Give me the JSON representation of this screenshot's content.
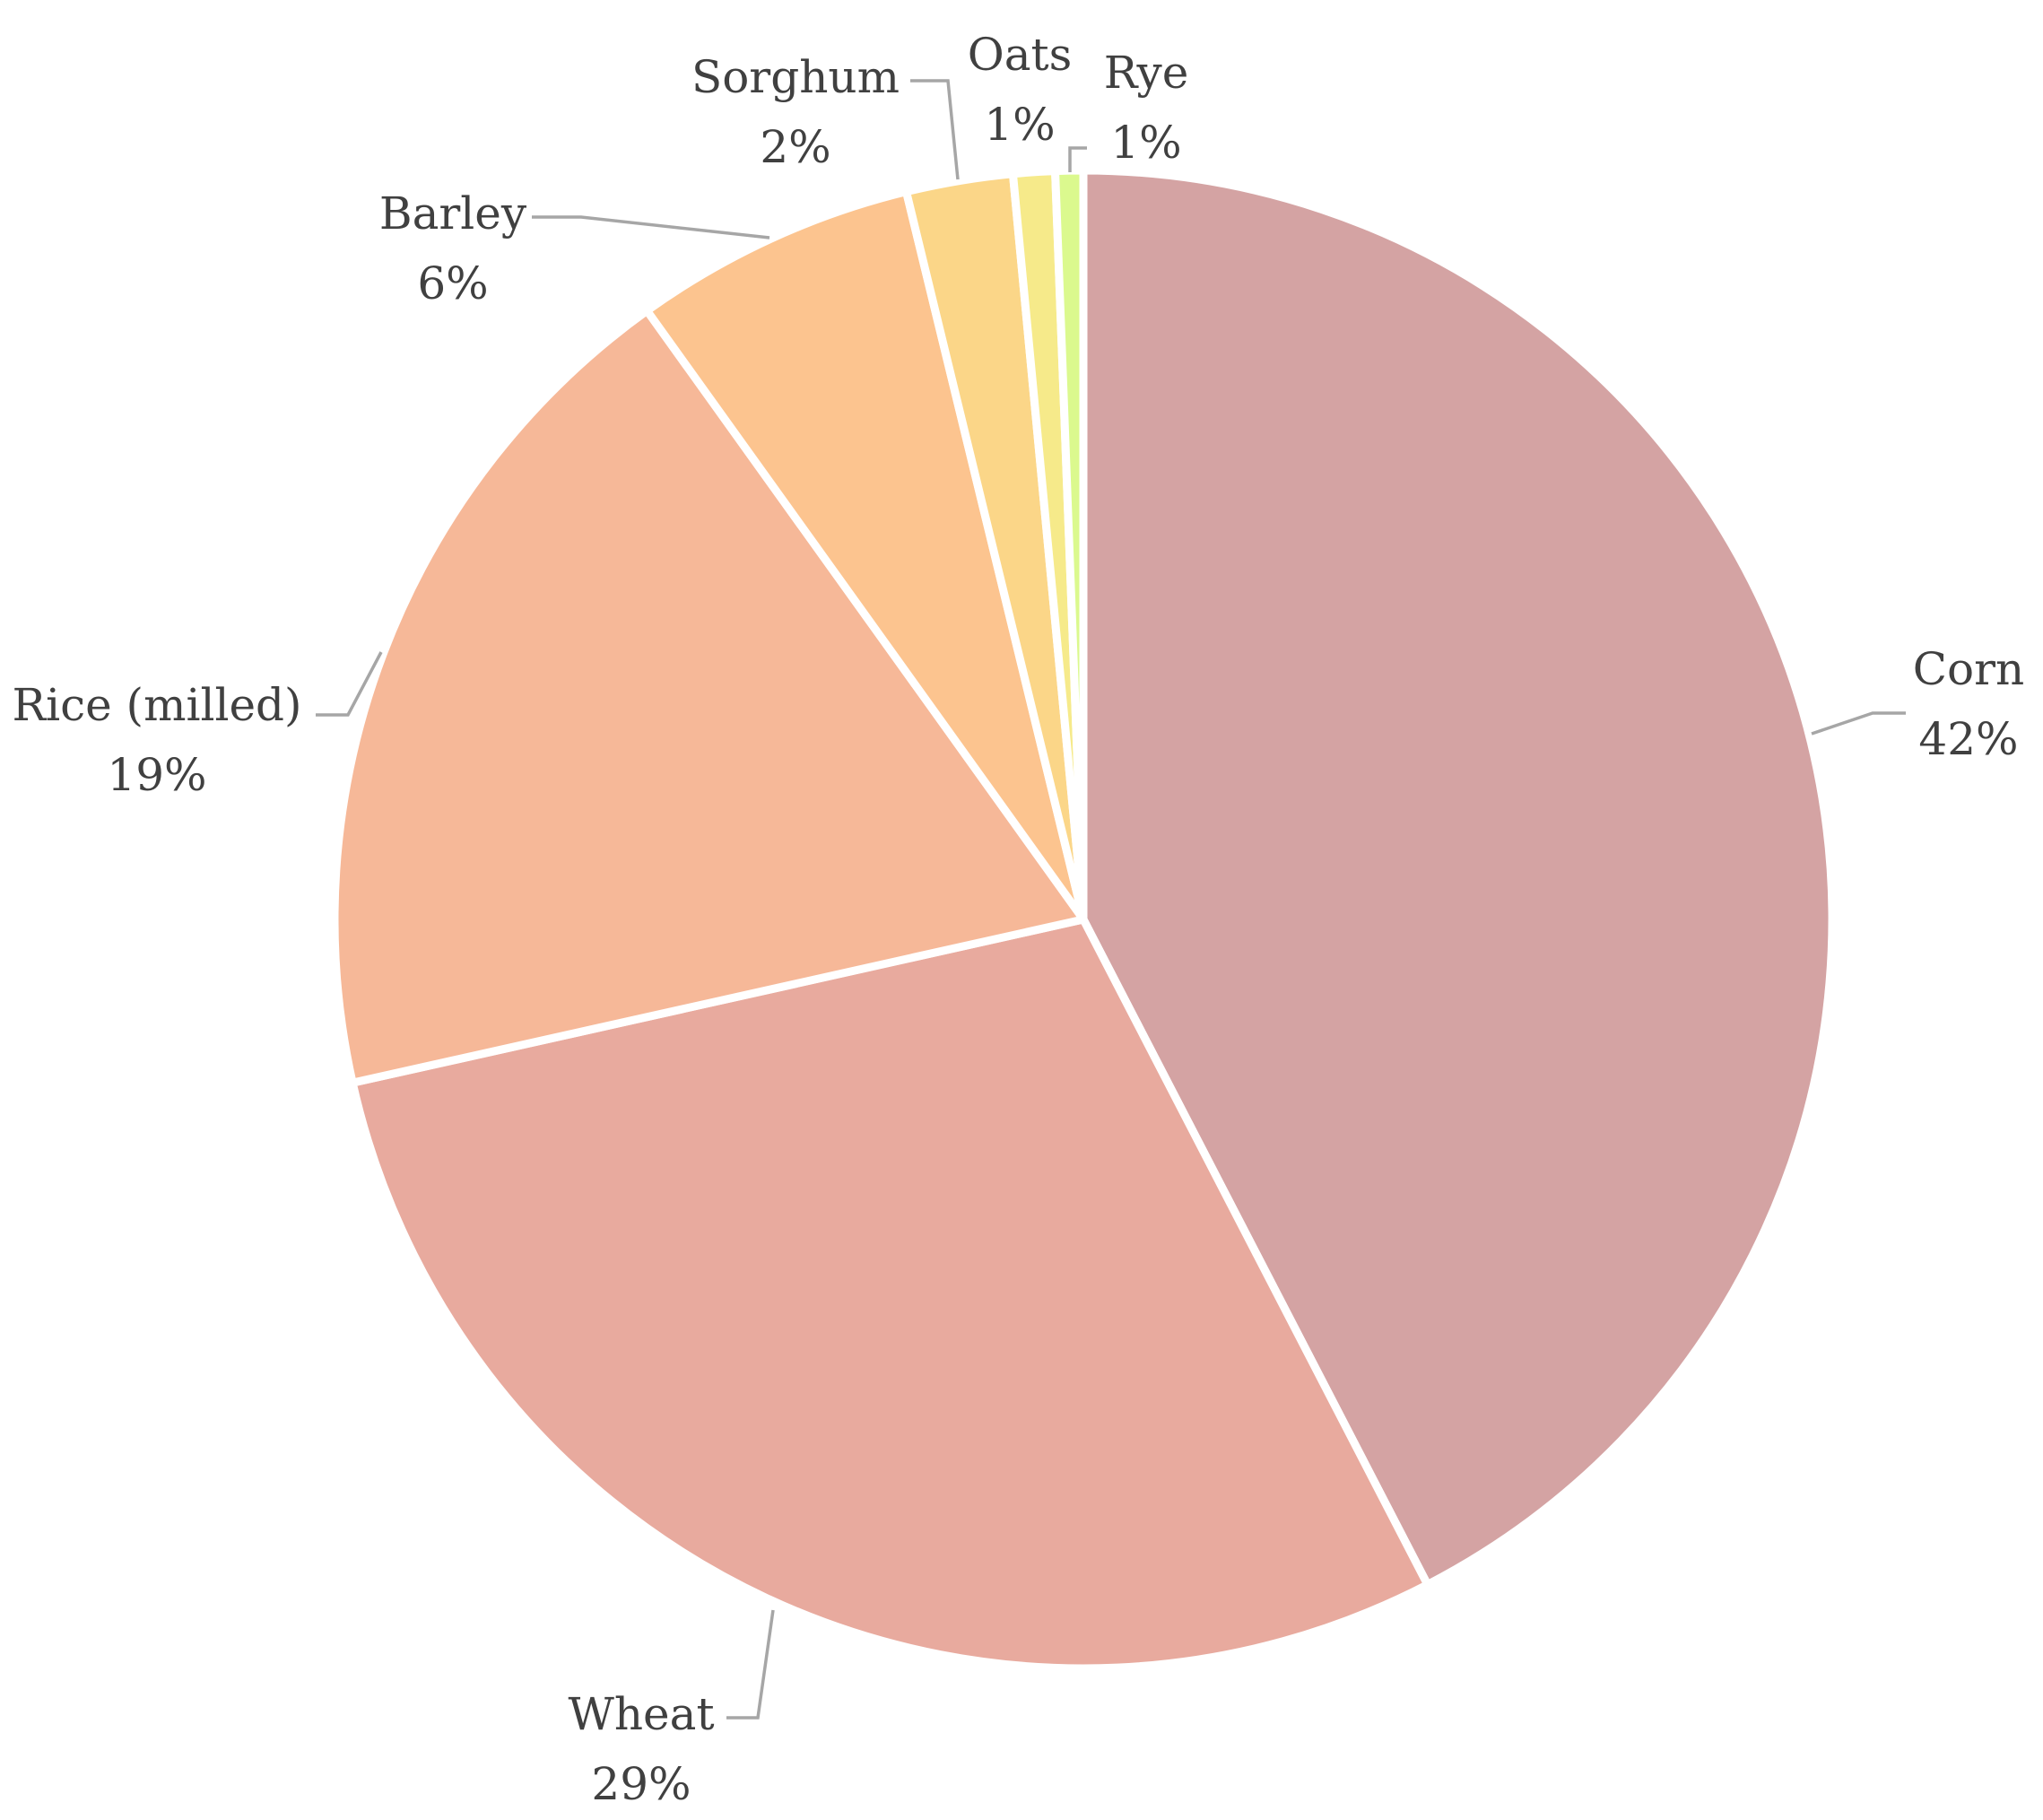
{
  "chart_data": {
    "type": "pie",
    "start_angle_deg": 0,
    "direction": "clockwise",
    "legend": "none",
    "slices": [
      {
        "label": "Corn",
        "value": 42.4,
        "display": "42%",
        "color": "#d4a3a3"
      },
      {
        "label": "Wheat",
        "value": 29.1,
        "display": "29%",
        "color": "#e8aa9e"
      },
      {
        "label": "Rice (milled)",
        "value": 18.6,
        "display": "19%",
        "color": "#f6b898"
      },
      {
        "label": "Barley",
        "value": 6.1,
        "display": "6%",
        "color": "#fcc48f"
      },
      {
        "label": "Sorghum",
        "value": 2.3,
        "display": "2%",
        "color": "#fbd688"
      },
      {
        "label": "Oats",
        "value": 0.9,
        "display": "1%",
        "color": "#f6ea8a"
      },
      {
        "label": "Rye",
        "value": 0.6,
        "display": "1%",
        "color": "#dbf98e"
      }
    ]
  }
}
